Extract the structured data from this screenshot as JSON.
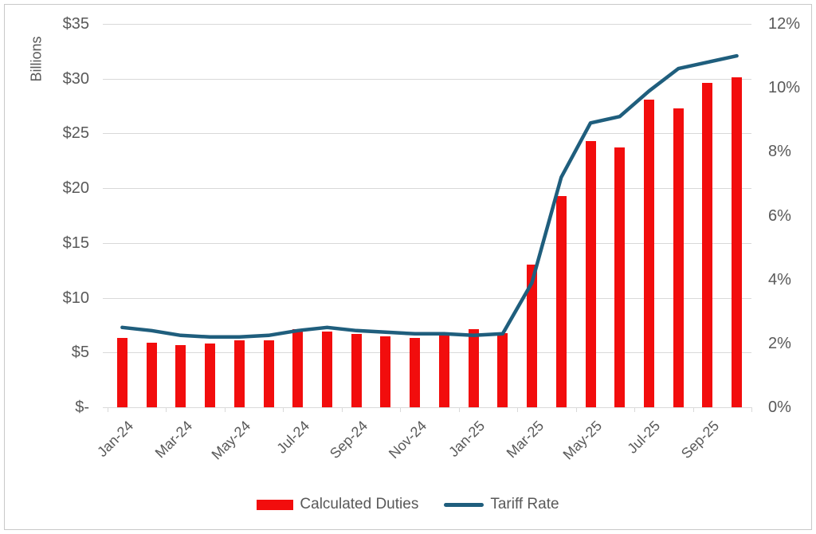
{
  "chart": {
    "y_left_title": "Billions",
    "y_left_tick_labels": [
      "$35",
      "$30",
      "$25",
      "$20",
      "$15",
      "$10",
      "$5",
      "$-"
    ],
    "y_right_tick_labels": [
      "12%",
      "10%",
      "8%",
      "6%",
      "4%",
      "2%",
      "0%"
    ],
    "colors": {
      "bar": "#F20D0D",
      "line": "#1F5E7D",
      "gridline": "#D9D9D9",
      "axis_text": "#595959",
      "border": "#C9C9C9",
      "background": "#FFFFFF"
    }
  },
  "chart_data": {
    "type": "combo",
    "subtype": "bar+line",
    "categories": [
      "Jan-24",
      "Feb-24",
      "Mar-24",
      "Apr-24",
      "May-24",
      "Jun-24",
      "Jul-24",
      "Aug-24",
      "Sep-24",
      "Oct-24",
      "Nov-24",
      "Dec-24",
      "Jan-25",
      "Feb-25",
      "Mar-25",
      "Apr-25",
      "May-25",
      "Jun-25",
      "Jul-25",
      "Aug-25",
      "Sep-25",
      "Oct-25"
    ],
    "x_axis_shown_labels": [
      "Jan-24",
      "Mar-24",
      "May-24",
      "Jul-24",
      "Sep-24",
      "Nov-24",
      "Jan-25",
      "Mar-25",
      "May-25",
      "Jul-25",
      "Sep-25"
    ],
    "x_label_interval": 2,
    "series": [
      {
        "name": "Calculated Duties",
        "type": "bar",
        "axis": "left",
        "unit": "USD billions",
        "color": "#F20D0D",
        "values": [
          6.3,
          5.9,
          5.7,
          5.8,
          6.1,
          6.1,
          7.1,
          6.9,
          6.7,
          6.5,
          6.3,
          6.6,
          7.1,
          6.8,
          13.0,
          19.3,
          24.3,
          23.7,
          28.1,
          27.3,
          29.6,
          30.1
        ]
      },
      {
        "name": "Tariff Rate",
        "type": "line",
        "axis": "right",
        "unit": "percent",
        "color": "#1F5E7D",
        "values": [
          2.5,
          2.4,
          2.25,
          2.2,
          2.2,
          2.25,
          2.4,
          2.5,
          2.4,
          2.35,
          2.3,
          2.3,
          2.25,
          2.3,
          3.9,
          7.2,
          8.9,
          9.1,
          9.9,
          10.6,
          10.8,
          11.0
        ]
      }
    ],
    "y_left": {
      "label": "Billions",
      "range": [
        0,
        35
      ],
      "tick_step": 5,
      "tick_format": "$"
    },
    "y_right": {
      "range": [
        0,
        12
      ],
      "tick_step": 2,
      "tick_format": "%"
    },
    "grid": true,
    "legend_position": "bottom"
  }
}
